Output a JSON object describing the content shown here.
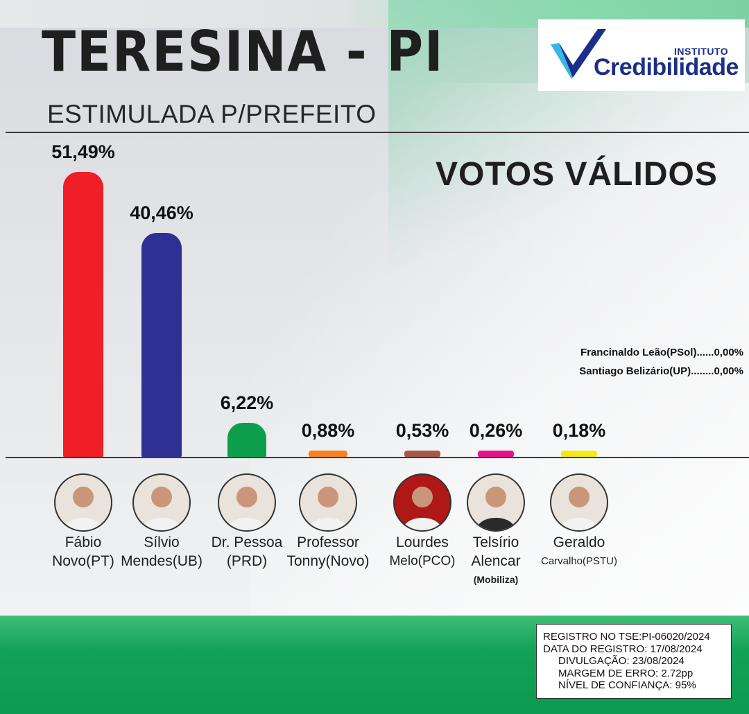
{
  "header": {
    "title": "TERESINA - PI",
    "subtitle": "ESTIMULADA P/PREFEITO",
    "logo_tagline": "INSTITUTO",
    "logo_name": "Credibilidade"
  },
  "colors": {
    "logo_blue": "#1b2e8a",
    "logo_cyan": "#38b6e6",
    "bottom_green": "#12a256"
  },
  "chart_data": {
    "type": "bar",
    "title": "VOTOS VÁLIDOS",
    "categories": [
      "Fábio Novo(PT)",
      "Sílvio Mendes(UB)",
      "Dr. Pessoa (PRD)",
      "Professor Tonny(Novo)",
      "Lourdes Melo(PCO)",
      "Telsírio Alencar (Mobiliza)",
      "Geraldo Carvalho(PSTU)"
    ],
    "values": [
      51.49,
      40.46,
      6.22,
      0.88,
      0.53,
      0.26,
      0.18
    ],
    "value_labels": [
      "51,49%",
      "40,46%",
      "6,22%",
      "0,88%",
      "0,53%",
      "0,26%",
      "0,18%"
    ],
    "bar_colors": [
      "#ee1f26",
      "#2e3192",
      "#0e9f4d",
      "#f7821f",
      "#a35a4a",
      "#e6138c",
      "#f3ea1a"
    ],
    "unit": "%"
  },
  "candidates": [
    {
      "line1": "Fábio",
      "line2": "Novo(PT)",
      "line3": "",
      "icon": "portrait-icon"
    },
    {
      "line1": "Sílvio",
      "line2": "Mendes(UB)",
      "line3": "",
      "icon": "portrait-icon"
    },
    {
      "line1": "Dr. Pessoa",
      "line2": "(PRD)",
      "line3": "",
      "icon": "portrait-icon"
    },
    {
      "line1": "Professor",
      "line2": "Tonny(Novo)",
      "line3": "",
      "icon": "portrait-icon"
    },
    {
      "line1": "Lourdes",
      "line2": "Melo(PCO)",
      "line3": "",
      "icon": "portrait-icon"
    },
    {
      "line1": "Telsírio",
      "line2": "Alencar",
      "line3": "(Mobiliza)",
      "icon": "portrait-icon"
    },
    {
      "line1": "Geraldo",
      "line2": "Carvalho(PSTU)",
      "line3": "",
      "icon": "portrait-icon"
    }
  ],
  "others": [
    "Francinaldo Leão(PSol)......0,00%",
    "Santiago Belizário(UP)........0,00%"
  ],
  "registration": {
    "line1": "REGISTRO NO TSE:PI-06020/2024",
    "line2": "DATA DO REGISTRO: 17/08/2024",
    "line3": "DIVULGAÇÃO: 23/08/2024",
    "line4": "MARGEM DE ERRO: 2.72pp",
    "line5": "NÍVEL DE CONFIANÇA: 95%"
  }
}
